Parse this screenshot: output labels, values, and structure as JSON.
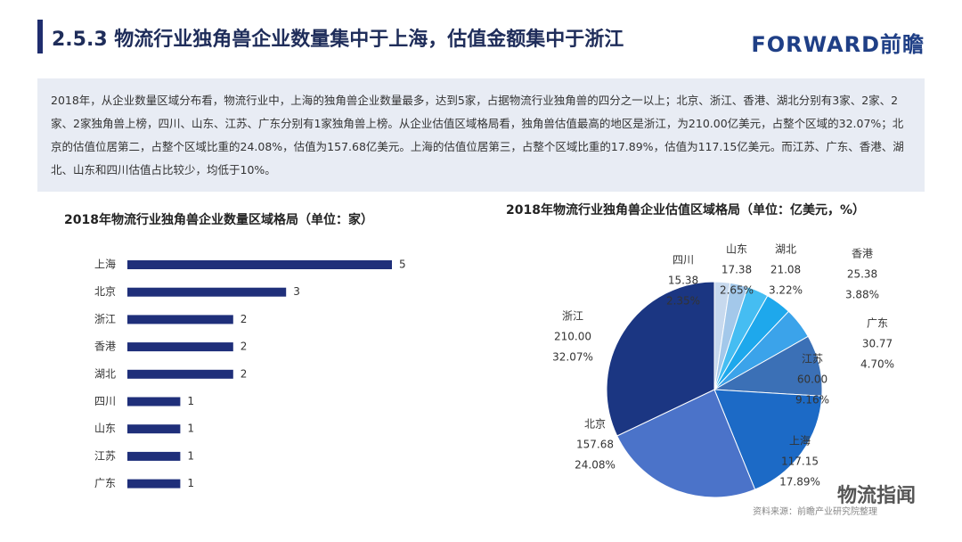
{
  "header": {
    "title": "2.5.3 物流行业独角兽企业数量集中于上海，估值金额集中于浙江",
    "logo": "FORWARD前瞻"
  },
  "summary": "2018年，从企业数量区域分布看，物流行业中，上海的独角兽企业数量最多，达到5家，占据物流行业独角兽的四分之一以上；北京、浙江、香港、湖北分别有3家、2家、2家、2家独角兽上榜，四川、山东、江苏、广东分别有1家独角兽上榜。从企业估值区域格局看，独角兽估值最高的地区是浙江，为210.00亿美元，占整个区域的32.07%；北京的估值位居第二，占整个区域比重的24.08%，估值为157.68亿美元。上海的估值位居第三，占整个区域比重的17.89%，估值为117.15亿美元。而江苏、广东、香港、湖北、山东和四川估值占比较少，均低于10%。",
  "chart_data": [
    {
      "type": "hbar",
      "title": "2018年物流行业独角兽企业数量区域格局（单位：家）",
      "categories": [
        "上海",
        "北京",
        "浙江",
        "香港",
        "湖北",
        "四川",
        "山东",
        "江苏",
        "广东"
      ],
      "values": [
        5,
        3,
        2,
        2,
        2,
        1,
        1,
        1,
        1
      ],
      "color": "#1f2f7a"
    },
    {
      "type": "pie",
      "title": "2018年物流行业独角兽企业估值区域格局（单位：亿美元，%）",
      "categories": [
        "四川",
        "山东",
        "湖北",
        "香港",
        "广东",
        "江苏",
        "上海",
        "北京",
        "浙江"
      ],
      "values": [
        15.38,
        17.38,
        21.08,
        25.38,
        30.77,
        60,
        117.15,
        157.68,
        210
      ],
      "value_labels": [
        "15.38",
        "17.38",
        "21.08",
        "25.38",
        "30.77",
        "60.00",
        "117.15",
        "157.68",
        "210.00"
      ],
      "shares": [
        2.35,
        2.65,
        3.22,
        3.88,
        4.7,
        9.16,
        17.89,
        24.08,
        32.07
      ],
      "share_labels": [
        "2.35%",
        "2.65%",
        "3.22%",
        "3.88%",
        "4.70%",
        "9.16%",
        "17.89%",
        "24.08%",
        "32.07%"
      ],
      "colors": [
        "#c7d9ee",
        "#a3c8ea",
        "#45bdf2",
        "#1ea8ec",
        "#3ba3ea",
        "#3b70b6",
        "#1c6ac6",
        "#4b73c9",
        "#1b3682"
      ]
    }
  ],
  "source": "资料来源：前瞻产业研究院整理",
  "watermark": "物流指闻"
}
